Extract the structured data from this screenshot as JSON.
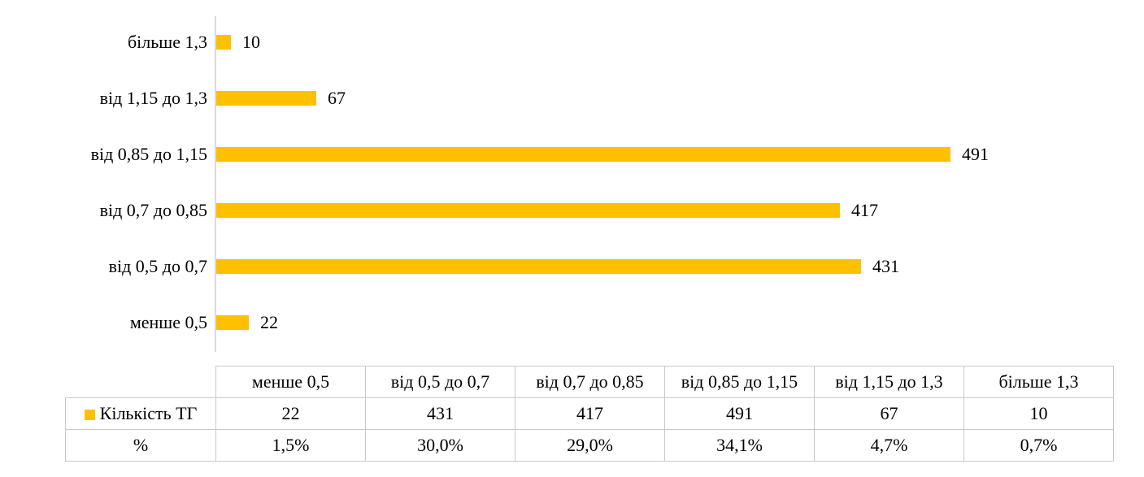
{
  "chart_data": {
    "type": "bar",
    "orientation": "horizontal",
    "title": "",
    "xlabel": "",
    "ylabel": "",
    "categories": [
      "менше 0,5",
      "від 0,5 до 0,7",
      "від 0,7 до 0,85",
      "від 0,85 до 1,15",
      "від 1,15 до 1,3",
      "більше 1,3"
    ],
    "series": [
      {
        "name": "Кількість ТГ",
        "color": "#ffc000",
        "values": [
          22,
          431,
          417,
          491,
          67,
          10
        ]
      }
    ],
    "percent_row": {
      "label": "%",
      "values": [
        "1,5%",
        "30,0%",
        "29,0%",
        "34,1%",
        "4,7%",
        "0,7%"
      ]
    },
    "data_labels_shown": true,
    "first_category_at_bottom": true,
    "grid": false,
    "legend_position": "data-table-left-column",
    "colors": {
      "bar": "#ffc000",
      "axis_line": "#d9d9d9",
      "table_border": "#c9c9c9",
      "text": "#000000",
      "background": "#ffffff"
    }
  }
}
